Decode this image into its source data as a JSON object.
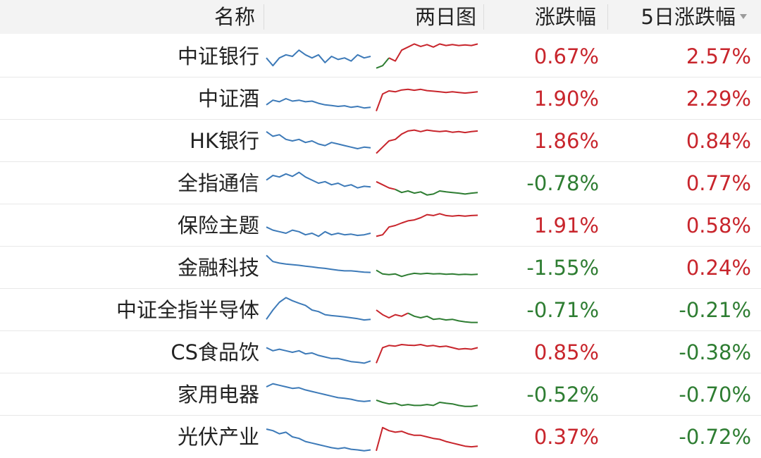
{
  "header": {
    "name": "名称",
    "chart": "两日图",
    "change": "涨跌幅",
    "change5": "5日涨跌幅"
  },
  "colors": {
    "up": "#c8252c",
    "down": "#2e7d32",
    "history": "#3d7ab8",
    "header_bg": "#f3f3f3"
  },
  "icons": {
    "sort": "sort-down-icon"
  },
  "rows": [
    {
      "name": "中证银行",
      "change": "0.67%",
      "change5": "2.57%",
      "dir": "up",
      "dir5": "up",
      "hist": [
        0.45,
        0.2,
        0.45,
        0.55,
        0.5,
        0.7,
        0.55,
        0.45,
        0.55,
        0.3,
        0.5,
        0.4,
        0.45,
        0.35,
        0.55,
        0.45,
        0.5
      ],
      "today": [
        0.12,
        0.2,
        0.45,
        0.35,
        0.7,
        0.8,
        0.9,
        0.82,
        0.88,
        0.8,
        0.9,
        0.85,
        0.88,
        0.85,
        0.87,
        0.85,
        0.9
      ],
      "today_split": 2
    },
    {
      "name": "中证酒",
      "change": "1.90%",
      "change5": "2.29%",
      "dir": "up",
      "dir5": "up",
      "hist": [
        0.3,
        0.45,
        0.4,
        0.5,
        0.42,
        0.45,
        0.4,
        0.42,
        0.35,
        0.3,
        0.28,
        0.25,
        0.27,
        0.22,
        0.25,
        0.2,
        0.22
      ],
      "today": [
        0.1,
        0.65,
        0.75,
        0.72,
        0.78,
        0.8,
        0.77,
        0.8,
        0.76,
        0.74,
        0.72,
        0.7,
        0.72,
        0.7,
        0.68,
        0.7,
        0.72
      ]
    },
    {
      "name": "HK银行",
      "change": "1.86%",
      "change5": "0.84%",
      "dir": "up",
      "dir5": "up",
      "hist": [
        0.8,
        0.65,
        0.7,
        0.55,
        0.5,
        0.55,
        0.45,
        0.5,
        0.4,
        0.35,
        0.45,
        0.4,
        0.35,
        0.3,
        0.25,
        0.3,
        0.28
      ],
      "today": [
        0.1,
        0.3,
        0.5,
        0.55,
        0.72,
        0.82,
        0.85,
        0.8,
        0.85,
        0.82,
        0.8,
        0.82,
        0.78,
        0.8,
        0.77,
        0.8,
        0.82
      ]
    },
    {
      "name": "全指通信",
      "change": "-0.78%",
      "change5": "0.77%",
      "dir": "down",
      "dir5": "up",
      "hist": [
        0.6,
        0.75,
        0.7,
        0.8,
        0.72,
        0.85,
        0.7,
        0.6,
        0.5,
        0.55,
        0.45,
        0.5,
        0.4,
        0.45,
        0.35,
        0.4,
        0.38
      ],
      "today": [
        0.55,
        0.45,
        0.35,
        0.3,
        0.2,
        0.25,
        0.18,
        0.22,
        0.12,
        0.15,
        0.25,
        0.22,
        0.2,
        0.18,
        0.15,
        0.18,
        0.2
      ],
      "today_split": 3
    },
    {
      "name": "保险主题",
      "change": "1.91%",
      "change5": "0.58%",
      "dir": "up",
      "dir5": "up",
      "hist": [
        0.45,
        0.35,
        0.3,
        0.25,
        0.35,
        0.3,
        0.2,
        0.25,
        0.15,
        0.3,
        0.2,
        0.25,
        0.2,
        0.22,
        0.18,
        0.2,
        0.25
      ],
      "today": [
        0.15,
        0.2,
        0.45,
        0.5,
        0.58,
        0.65,
        0.68,
        0.75,
        0.85,
        0.82,
        0.88,
        0.82,
        0.8,
        0.82,
        0.8,
        0.82,
        0.83
      ]
    },
    {
      "name": "金融科技",
      "change": "-1.55%",
      "change5": "0.24%",
      "dir": "down",
      "dir5": "up",
      "hist": [
        0.9,
        0.7,
        0.65,
        0.62,
        0.6,
        0.58,
        0.55,
        0.53,
        0.5,
        0.48,
        0.45,
        0.42,
        0.4,
        0.4,
        0.38,
        0.36,
        0.35
      ],
      "today": [
        0.42,
        0.3,
        0.28,
        0.3,
        0.22,
        0.28,
        0.32,
        0.3,
        0.32,
        0.3,
        0.31,
        0.29,
        0.3,
        0.28,
        0.29,
        0.28,
        0.29
      ]
    },
    {
      "name": "中证全指半导体",
      "change": "-0.71%",
      "change5": "-0.21%",
      "dir": "down",
      "dir5": "down",
      "hist": [
        0.2,
        0.5,
        0.75,
        0.9,
        0.8,
        0.72,
        0.65,
        0.5,
        0.45,
        0.35,
        0.32,
        0.3,
        0.28,
        0.25,
        0.22,
        0.18,
        0.2
      ],
      "today": [
        0.5,
        0.35,
        0.25,
        0.35,
        0.3,
        0.4,
        0.3,
        0.25,
        0.3,
        0.2,
        0.22,
        0.18,
        0.2,
        0.15,
        0.12,
        0.1,
        0.1
      ],
      "today_split": 5
    },
    {
      "name": "CS食品饮",
      "change": "0.85%",
      "change5": "-0.38%",
      "dir": "up",
      "dir5": "down",
      "hist": [
        0.65,
        0.55,
        0.6,
        0.55,
        0.5,
        0.55,
        0.45,
        0.48,
        0.4,
        0.35,
        0.3,
        0.3,
        0.25,
        0.2,
        0.18,
        0.15,
        0.22
      ],
      "today": [
        0.15,
        0.65,
        0.72,
        0.7,
        0.75,
        0.73,
        0.72,
        0.75,
        0.7,
        0.72,
        0.68,
        0.7,
        0.65,
        0.6,
        0.62,
        0.6,
        0.65
      ]
    },
    {
      "name": "家用电器",
      "change": "-0.52%",
      "change5": "-0.70%",
      "dir": "down",
      "dir5": "down",
      "hist": [
        0.75,
        0.85,
        0.8,
        0.75,
        0.7,
        0.72,
        0.65,
        0.6,
        0.55,
        0.5,
        0.45,
        0.4,
        0.38,
        0.35,
        0.3,
        0.28,
        0.3
      ],
      "today": [
        0.32,
        0.25,
        0.2,
        0.22,
        0.15,
        0.18,
        0.15,
        0.15,
        0.18,
        0.15,
        0.25,
        0.22,
        0.2,
        0.15,
        0.12,
        0.12,
        0.15
      ]
    },
    {
      "name": "光伏产业",
      "change": "0.37%",
      "change5": "-0.72%",
      "dir": "up",
      "dir5": "down",
      "hist": [
        0.75,
        0.7,
        0.6,
        0.65,
        0.5,
        0.45,
        0.35,
        0.3,
        0.25,
        0.2,
        0.15,
        0.12,
        0.15,
        0.1,
        0.08,
        0.05,
        0.08
      ],
      "today": [
        0.05,
        0.8,
        0.7,
        0.65,
        0.68,
        0.6,
        0.55,
        0.55,
        0.5,
        0.45,
        0.42,
        0.35,
        0.3,
        0.25,
        0.2,
        0.18,
        0.2
      ]
    }
  ]
}
